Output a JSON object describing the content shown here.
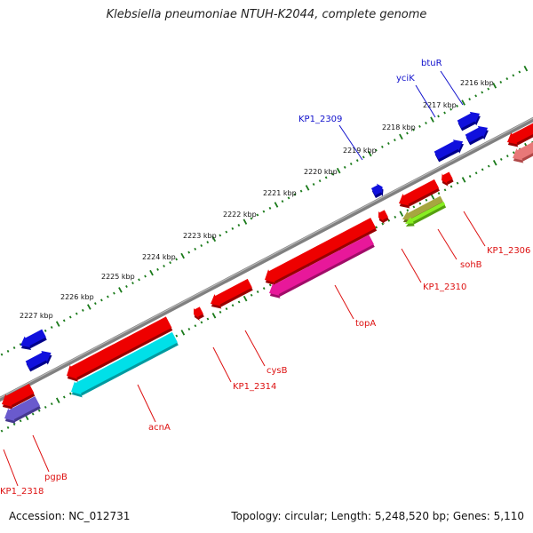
{
  "title": "Klebsiella pneumoniae NTUH-K2044, complete genome",
  "accession": "Accession: NC_012731",
  "summary": "Topology: circular; Length: 5,248,520 bp; Genes: 5,110",
  "ruler_labels": [
    "2216 kbp",
    "2217 kbp",
    "2218 kbp",
    "2219 kbp",
    "2220 kbp",
    "2221 kbp",
    "2222 kbp",
    "2223 kbp",
    "2224 kbp",
    "2225 kbp",
    "2226 kbp",
    "2227 kbp"
  ],
  "colors": {
    "backbone": "#808080",
    "ruler": "#1a7a1a",
    "forward_label": "#1111cc",
    "reverse_label": "#dd1111",
    "red": "#ee0000",
    "blue": "#1010dd",
    "cyan": "#00e0e8",
    "magenta": "#e8189a",
    "olive": "#a6a640",
    "lime": "#88ee22",
    "pink": "#e87878",
    "purple": "#6a5acd"
  },
  "gene_labels": [
    {
      "name": "btuR",
      "strand": "forward"
    },
    {
      "name": "yciK",
      "strand": "forward"
    },
    {
      "name": "KP1_2309",
      "strand": "forward"
    },
    {
      "name": "KP1_2306",
      "strand": "reverse"
    },
    {
      "name": "sohB",
      "strand": "reverse"
    },
    {
      "name": "KP1_2310",
      "strand": "reverse"
    },
    {
      "name": "topA",
      "strand": "reverse"
    },
    {
      "name": "cysB",
      "strand": "reverse"
    },
    {
      "name": "KP1_2314",
      "strand": "reverse"
    },
    {
      "name": "acnA",
      "strand": "reverse"
    },
    {
      "name": "pgpB",
      "strand": "reverse"
    },
    {
      "name": "KP1_2318",
      "strand": "reverse"
    }
  ]
}
